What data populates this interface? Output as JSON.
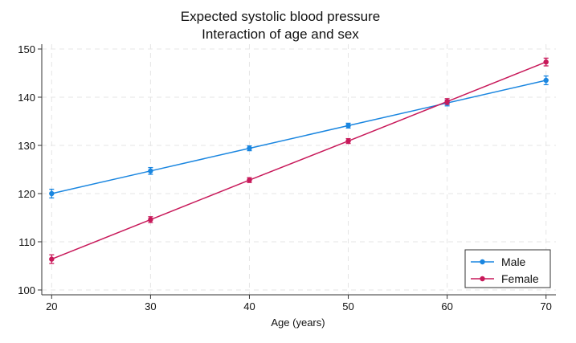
{
  "chart_data": {
    "type": "line",
    "title": "Expected systolic blood pressure",
    "subtitle": "Interaction of age and sex",
    "xlabel": "Age (years)",
    "ylabel": "",
    "x": [
      20,
      30,
      40,
      50,
      60,
      70
    ],
    "xlim": [
      19,
      71
    ],
    "ylim": [
      99,
      151
    ],
    "xticks": [
      20,
      30,
      40,
      50,
      60,
      70
    ],
    "yticks": [
      100,
      110,
      120,
      130,
      140,
      150
    ],
    "grid": true,
    "legend_position": "bottom-right",
    "series": [
      {
        "name": "Male",
        "color": "#1a86e0",
        "values": [
          120.0,
          124.7,
          129.4,
          134.1,
          138.8,
          143.5
        ],
        "ci_lower": [
          119.1,
          124.0,
          128.9,
          133.6,
          138.2,
          142.6
        ],
        "ci_upper": [
          120.9,
          125.4,
          129.9,
          134.6,
          139.4,
          144.4
        ]
      },
      {
        "name": "Female",
        "color": "#c8195a",
        "values": [
          106.4,
          114.6,
          122.8,
          130.9,
          139.1,
          147.3
        ],
        "ci_lower": [
          105.5,
          114.0,
          122.3,
          130.4,
          138.5,
          146.5
        ],
        "ci_upper": [
          107.3,
          115.2,
          123.3,
          131.4,
          139.7,
          148.1
        ]
      }
    ]
  }
}
